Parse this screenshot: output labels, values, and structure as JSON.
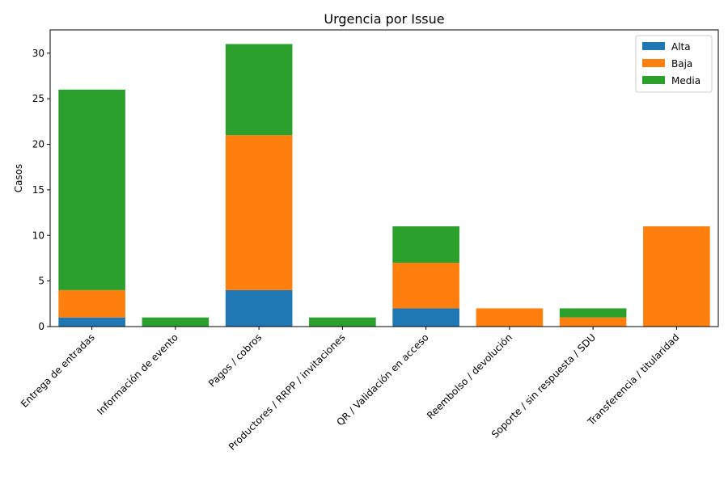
{
  "chart_data": {
    "type": "bar",
    "stacked": true,
    "title": "Urgencia por Issue",
    "xlabel": "",
    "ylabel": "Casos",
    "ylim": [
      0,
      32.55
    ],
    "yticks": [
      0,
      5,
      10,
      15,
      20,
      25,
      30
    ],
    "grid": false,
    "legend_position": "top-right",
    "categories": [
      "Entrega de entradas",
      "Información de evento",
      "Pagos / cobros",
      "Productores / RRPP / invitaciones",
      "QR / Validación en acceso",
      "Reembolso / devolución",
      "Soporte / sin respuesta / SDU",
      "Transferencia / titularidad"
    ],
    "series": [
      {
        "name": "Alta",
        "color": "#1f77b4",
        "values": [
          1,
          0,
          4,
          0,
          2,
          0,
          0,
          0
        ]
      },
      {
        "name": "Baja",
        "color": "#ff7f0e",
        "values": [
          3,
          0,
          17,
          0,
          5,
          2,
          1,
          11
        ]
      },
      {
        "name": "Media",
        "color": "#2ca02c",
        "values": [
          22,
          1,
          10,
          1,
          4,
          0,
          1,
          0
        ]
      }
    ]
  }
}
